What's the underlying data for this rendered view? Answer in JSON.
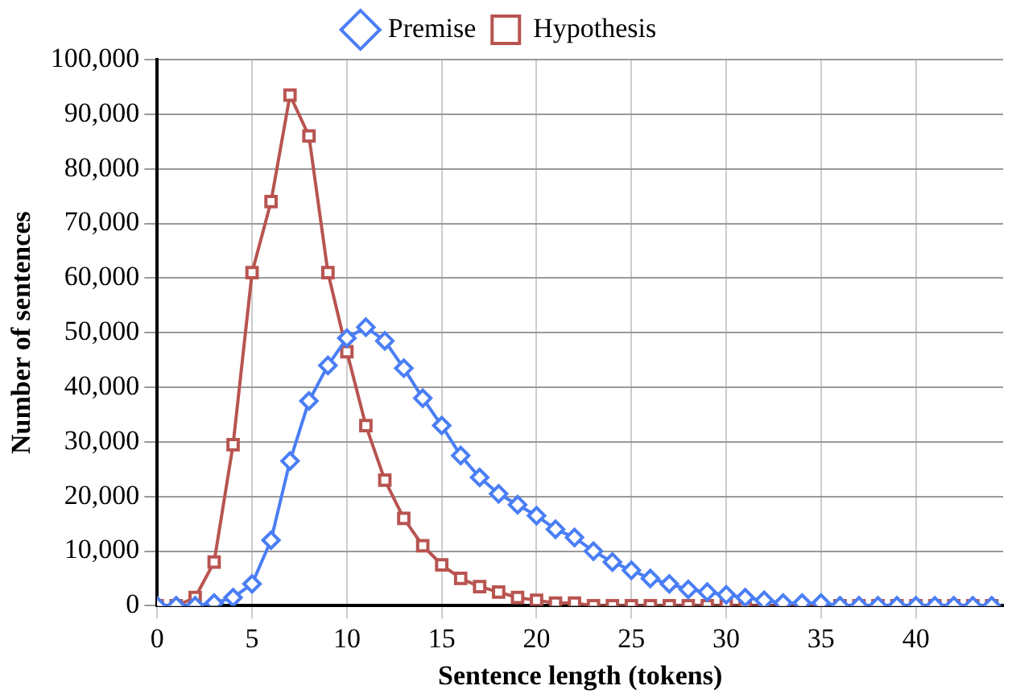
{
  "chart_data": {
    "type": "line",
    "xlabel": "Sentence length (tokens)",
    "ylabel": "Number of sentences",
    "x": [
      0,
      1,
      2,
      3,
      4,
      5,
      6,
      7,
      8,
      9,
      10,
      11,
      12,
      13,
      14,
      15,
      16,
      17,
      18,
      19,
      20,
      21,
      22,
      23,
      24,
      25,
      26,
      27,
      28,
      29,
      30,
      31,
      32,
      33,
      34,
      35,
      36,
      37,
      38,
      39,
      40,
      41,
      42,
      43,
      44
    ],
    "series": [
      {
        "name": "Premise",
        "color": "#4a7ef5",
        "marker": "diamond",
        "values": [
          0,
          0,
          0,
          500,
          1500,
          4000,
          12000,
          26500,
          37500,
          44000,
          49000,
          51000,
          48500,
          43500,
          38000,
          33000,
          27500,
          23500,
          20500,
          18500,
          16500,
          14000,
          12500,
          10000,
          8000,
          6500,
          5000,
          4000,
          3000,
          2500,
          2000,
          1500,
          1000,
          500,
          500,
          500,
          0,
          0,
          0,
          0,
          0,
          0,
          0,
          0,
          0
        ]
      },
      {
        "name": "Hypothesis",
        "color": "#b85450",
        "marker": "square",
        "values": [
          0,
          0,
          1500,
          8000,
          29500,
          61000,
          74000,
          93500,
          86000,
          61000,
          46500,
          33000,
          23000,
          16000,
          11000,
          7500,
          5000,
          3500,
          2500,
          1500,
          1000,
          500,
          500,
          0,
          0,
          0,
          0,
          0,
          0,
          0,
          0,
          0,
          0,
          0,
          0,
          0,
          0,
          0,
          0,
          0,
          0,
          0,
          0,
          0,
          0
        ]
      }
    ],
    "xlim": [
      0,
      44.6
    ],
    "xticks": [
      0,
      5,
      10,
      15,
      20,
      25,
      30,
      35,
      40
    ],
    "ylim": [
      0,
      100000
    ],
    "yticks": [
      0,
      {
        "value": 10000,
        "label": "10,000"
      },
      {
        "value": 20000,
        "label": "20,000"
      },
      {
        "value": 30000,
        "label": "30,000"
      },
      {
        "value": 40000,
        "label": "40,000"
      },
      {
        "value": 50000,
        "label": "50,000"
      },
      {
        "value": 60000,
        "label": "60,000"
      },
      {
        "value": 70000,
        "label": "70,000"
      },
      {
        "value": 80000,
        "label": "80,000"
      },
      {
        "value": 90000,
        "label": "90,000"
      },
      {
        "value": 100000,
        "label": "100,000"
      }
    ],
    "grid": true,
    "legend": "top"
  }
}
